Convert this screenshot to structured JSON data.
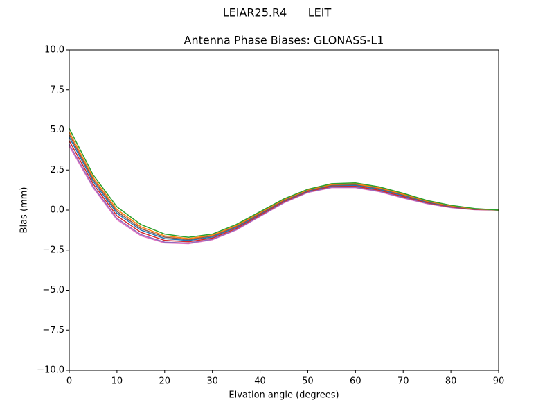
{
  "chart_data": {
    "type": "line",
    "suptitle": "LEIAR25.R4      LEIT",
    "title": "Antenna Phase Biases: GLONASS-L1",
    "xlabel": "Elvation angle (degrees)",
    "ylabel": "Bias (mm)",
    "x": [
      0,
      5,
      10,
      15,
      20,
      25,
      30,
      35,
      40,
      45,
      50,
      55,
      60,
      65,
      70,
      75,
      80,
      85,
      90
    ],
    "xlim": [
      0,
      90
    ],
    "xticks": [
      0,
      10,
      20,
      30,
      40,
      50,
      60,
      70,
      80,
      90
    ],
    "ylim": [
      -10,
      10
    ],
    "yticks": [
      {
        "value": -10,
        "label": "−10.0"
      },
      {
        "value": -7.5,
        "label": "−7.5"
      },
      {
        "value": -5,
        "label": "−5.0"
      },
      {
        "value": -2.5,
        "label": "−2.5"
      },
      {
        "value": 0,
        "label": "0.0"
      },
      {
        "value": 2.5,
        "label": "2.5"
      },
      {
        "value": 5,
        "label": "5.0"
      },
      {
        "value": 7.5,
        "label": "7.5"
      },
      {
        "value": 10,
        "label": "10.0"
      }
    ],
    "grid": false,
    "series": [
      {
        "color": "#e377c2",
        "values": [
          4.0,
          1.4,
          -0.6,
          -1.6,
          -2.05,
          -2.1,
          -1.85,
          -1.25,
          -0.4,
          0.45,
          1.1,
          1.4,
          1.4,
          1.15,
          0.75,
          0.4,
          0.15,
          0.02,
          0
        ]
      },
      {
        "color": "#9467bd",
        "values": [
          4.11,
          1.48,
          -0.52,
          -1.53,
          -2.0,
          -2.06,
          -1.82,
          -1.22,
          -0.37,
          0.48,
          1.12,
          1.43,
          1.43,
          1.18,
          0.78,
          0.42,
          0.17,
          0.03,
          0
        ]
      },
      {
        "color": "#d62728",
        "values": [
          4.33,
          1.64,
          -0.36,
          -1.39,
          -1.89,
          -1.98,
          -1.75,
          -1.15,
          -0.31,
          0.53,
          1.16,
          1.48,
          1.49,
          1.24,
          0.84,
          0.46,
          0.2,
          0.04,
          0
        ]
      },
      {
        "color": "#1f77b4",
        "values": [
          4.55,
          1.8,
          -0.2,
          -1.25,
          -1.78,
          -1.9,
          -1.68,
          -1.08,
          -0.25,
          0.58,
          1.2,
          1.53,
          1.55,
          1.3,
          0.9,
          0.5,
          0.23,
          0.06,
          0
        ]
      },
      {
        "color": "#8c564b",
        "values": [
          4.72,
          1.92,
          -0.08,
          -1.15,
          -1.69,
          -1.84,
          -1.62,
          -1.02,
          -0.21,
          0.61,
          1.23,
          1.56,
          1.6,
          1.35,
          0.95,
          0.53,
          0.25,
          0.07,
          0
        ]
      },
      {
        "color": "#ff7f0e",
        "values": [
          4.88,
          2.04,
          0.04,
          -1.04,
          -1.61,
          -1.78,
          -1.57,
          -0.97,
          -0.16,
          0.65,
          1.26,
          1.6,
          1.64,
          1.39,
          0.99,
          0.56,
          0.27,
          0.08,
          0
        ]
      },
      {
        "color": "#2ca02c",
        "values": [
          5.1,
          2.2,
          0.2,
          -0.9,
          -1.5,
          -1.7,
          -1.5,
          -0.9,
          -0.1,
          0.7,
          1.3,
          1.65,
          1.7,
          1.45,
          1.05,
          0.6,
          0.3,
          0.1,
          0
        ]
      }
    ]
  }
}
